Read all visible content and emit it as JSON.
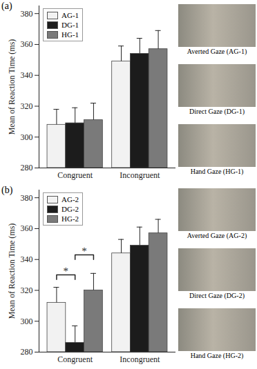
{
  "chart_data": [
    {
      "type": "bar",
      "title": "(a)",
      "ylabel": "Mean of Reaction Time (ms)",
      "categories": [
        "Congruent",
        "Incongruent"
      ],
      "series": [
        {
          "name": "AG-1",
          "color": "#f2f2f2",
          "values": [
            308,
            349
          ],
          "errors": [
            10,
            10
          ]
        },
        {
          "name": "DG-1",
          "color": "#1c1c1c",
          "values": [
            309,
            354
          ],
          "errors": [
            10,
            10
          ]
        },
        {
          "name": "HG-1",
          "color": "#7a7a7a",
          "values": [
            311,
            357
          ],
          "errors": [
            11,
            12
          ]
        }
      ],
      "ylim": [
        280,
        385
      ],
      "yticks": [
        280,
        300,
        320,
        340,
        360,
        380
      ],
      "legend": "upper left",
      "images": [
        {
          "caption": "Averted Gaze (AG-1)"
        },
        {
          "caption": "Direct Gaze (DG-1)"
        },
        {
          "caption": "Hand Gaze (HG-1)"
        }
      ]
    },
    {
      "type": "bar",
      "title": "(b)",
      "ylabel": "Mean of Reaction Time (ms)",
      "categories": [
        "Congruent",
        "Incongruent"
      ],
      "series": [
        {
          "name": "AG-2",
          "color": "#f2f2f2",
          "values": [
            312,
            344
          ],
          "errors": [
            10,
            9
          ]
        },
        {
          "name": "DG-2",
          "color": "#1c1c1c",
          "values": [
            286,
            349
          ],
          "errors": [
            11,
            12
          ]
        },
        {
          "name": "HG-2",
          "color": "#7a7a7a",
          "values": [
            320,
            357
          ],
          "errors": [
            11,
            9
          ]
        }
      ],
      "ylim": [
        280,
        385
      ],
      "yticks": [
        280,
        300,
        320,
        340,
        360,
        380
      ],
      "legend": "upper left",
      "annotations": [
        {
          "text": "*",
          "category": "Congruent",
          "between": [
            "AG-2",
            "DG-2"
          ]
        },
        {
          "text": "*",
          "category": "Congruent",
          "between": [
            "DG-2",
            "HG-2"
          ]
        }
      ],
      "images": [
        {
          "caption": "Averted Gaze (AG-2)"
        },
        {
          "caption": "Direct Gaze (DG-2)"
        },
        {
          "caption": "Hand Gaze (HG-2)"
        }
      ]
    }
  ]
}
